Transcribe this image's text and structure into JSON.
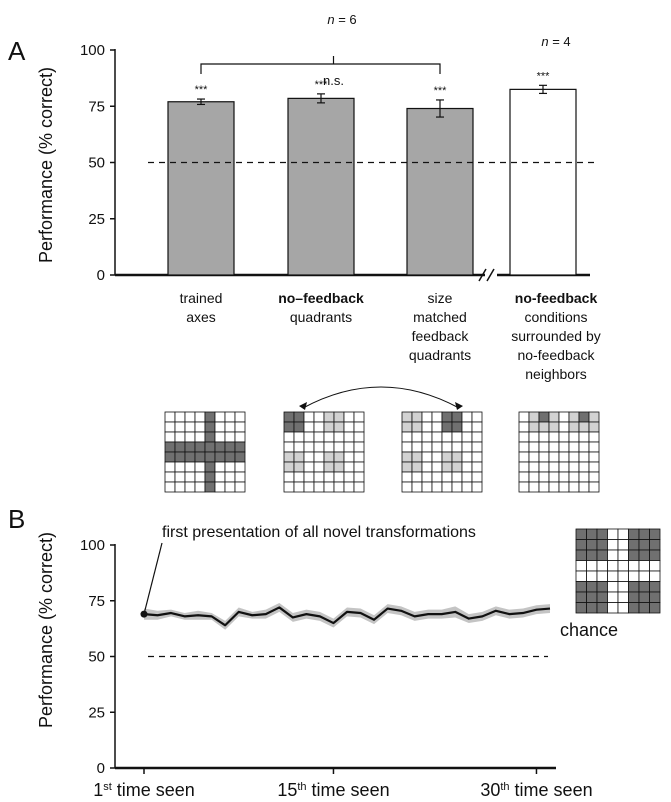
{
  "panel_a": {
    "letter": "A",
    "n_main": [
      "n",
      " = 6"
    ],
    "n_right": [
      "n",
      " = 4"
    ],
    "ns": "n.s."
  },
  "panel_b": {
    "letter": "B",
    "chance_label": "chance"
  },
  "chart_data": [
    {
      "type": "bar",
      "ylabel": "Performance (% correct)",
      "ylim": [
        0,
        100
      ],
      "yticks": [
        0,
        25,
        50,
        75,
        100
      ],
      "chance_level": 50,
      "categories": [
        {
          "lines": [
            "trained",
            "axes"
          ],
          "bold_first": false
        },
        {
          "lines": [
            "no–feedback",
            "quadrants"
          ],
          "bold_first": true
        },
        {
          "lines": [
            "size",
            "matched",
            "feedback",
            "quadrants"
          ],
          "bold_first": false
        },
        {
          "lines": [
            "no-feedback",
            "conditions",
            "surrounded by",
            "no-feedback",
            "neighbors"
          ],
          "bold_first": true
        }
      ],
      "values": [
        77,
        78.5,
        74,
        82.5
      ],
      "errors": [
        1.2,
        2.0,
        3.8,
        1.8
      ],
      "significance": [
        "***",
        "***",
        "***",
        "***"
      ],
      "bar_colors": [
        "#a6a6a6",
        "#a6a6a6",
        "#a6a6a6",
        "#ffffff"
      ],
      "axis_break_after_index": 2,
      "comparison_label": "n.s."
    },
    {
      "type": "line",
      "ylabel": "Performance (% correct)",
      "ylim": [
        0,
        100
      ],
      "yticks": [
        0,
        25,
        50,
        75,
        100
      ],
      "xticks": [
        {
          "x": 1,
          "pre": "1",
          "sup": "st",
          "post": " time seen"
        },
        {
          "x": 15,
          "pre": "15",
          "sup": "th",
          "post": " time seen"
        },
        {
          "x": 30,
          "pre": "30",
          "sup": "th",
          "post": " time seen"
        }
      ],
      "xlim": [
        1,
        31
      ],
      "chance_level": 50,
      "annotation": "first presentation of all novel transformations",
      "x": [
        1,
        2,
        3,
        4,
        5,
        6,
        7,
        8,
        9,
        10,
        11,
        12,
        13,
        14,
        15,
        16,
        17,
        18,
        19,
        20,
        21,
        22,
        23,
        24,
        25,
        26,
        27,
        28,
        29,
        30,
        31
      ],
      "values": [
        69,
        68.5,
        69.5,
        68,
        68.5,
        68,
        64,
        70,
        68.5,
        69,
        72,
        67.5,
        69,
        68,
        65,
        70,
        69.5,
        66.5,
        71.5,
        70.5,
        68,
        69,
        69,
        70,
        67,
        68,
        70.5,
        69,
        69.5,
        71,
        71.5
      ],
      "band": [
        2.5,
        2,
        1.5,
        1.5,
        2,
        1.5,
        2,
        2,
        1.5,
        2,
        2,
        2,
        2,
        2,
        2,
        2,
        2,
        2,
        2,
        2,
        2,
        2,
        2,
        2.5,
        2,
        2,
        2,
        2,
        2,
        2,
        2
      ],
      "colors": {
        "line": "#111111",
        "band": "#c4c4c4"
      }
    }
  ]
}
